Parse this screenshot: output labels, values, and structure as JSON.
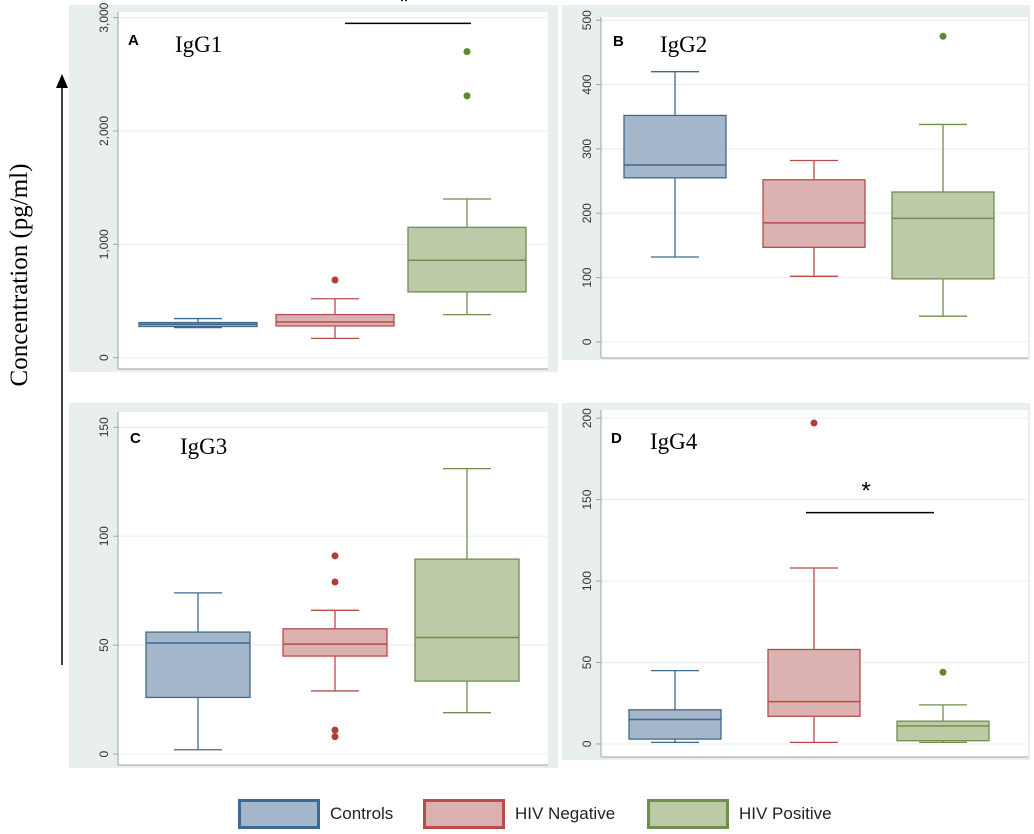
{
  "y_axis_label": "Concentration (pg/ml)",
  "colors": {
    "plot_bg": "#ffffff",
    "outer_bg": "#e9efef",
    "grid": "#eaf0f0",
    "axis": "#9aa3a3",
    "tick_label": "#333333",
    "controls_fill": "#a4b6c9",
    "controls_line": "#3e6a8f",
    "hivneg_fill": "#dcb1b1",
    "hivneg_line": "#b84c4c",
    "hivpos_fill": "#bccaa8",
    "hivpos_line": "#6f8f4e",
    "outlier_controls": "#3e6a8f",
    "outlier_hivneg": "#b23b3b",
    "outlier_hivpos": "#5b8a2e"
  },
  "legend": [
    {
      "name": "Controls",
      "fill": "#a4b6c9",
      "line": "#3e6a8f"
    },
    {
      "name": "HIV Negative",
      "fill": "#dcb1b1",
      "line": "#b84c4c"
    },
    {
      "name": "HIV Positive",
      "fill": "#bccaa8",
      "line": "#6f8f4e"
    }
  ],
  "chart_data": [
    {
      "type": "box",
      "panel": "A",
      "title": "IgG1",
      "ylim": [
        -100,
        3050
      ],
      "ticks": [
        0,
        1000,
        2000,
        3000
      ],
      "tick_labels": [
        "0",
        "1,000",
        "2,000",
        "3,000"
      ],
      "groups": [
        {
          "name": "Controls",
          "min": 265,
          "q1": 275,
          "median": 295,
          "q3": 310,
          "max": 345,
          "outliers": []
        },
        {
          "name": "HIV Negative",
          "min": 170,
          "q1": 280,
          "median": 315,
          "q3": 380,
          "max": 520,
          "outliers": [
            685
          ]
        },
        {
          "name": "HIV Positive",
          "min": 380,
          "q1": 580,
          "median": 860,
          "q3": 1150,
          "max": 1400,
          "outliers": [
            2700,
            2310
          ]
        }
      ],
      "significance": {
        "label": "*",
        "value": 2950
      }
    },
    {
      "type": "box",
      "panel": "B",
      "title": "IgG2",
      "ylim": [
        -25,
        505
      ],
      "ticks": [
        0,
        100,
        200,
        300,
        400,
        500
      ],
      "tick_labels": [
        "0",
        "100",
        "200",
        "300",
        "400",
        "500"
      ],
      "groups": [
        {
          "name": "Controls",
          "min": 132,
          "q1": 255,
          "median": 275,
          "q3": 352,
          "max": 420,
          "outliers": []
        },
        {
          "name": "HIV Negative",
          "min": 102,
          "q1": 147,
          "median": 185,
          "q3": 252,
          "max": 282,
          "outliers": []
        },
        {
          "name": "HIV Positive",
          "min": 40,
          "q1": 98,
          "median": 192,
          "q3": 233,
          "max": 338,
          "outliers": [
            475
          ]
        }
      ],
      "significance": null
    },
    {
      "type": "box",
      "panel": "C",
      "title": "IgG3",
      "ylim": [
        -5,
        157
      ],
      "ticks": [
        0,
        50,
        100,
        150
      ],
      "tick_labels": [
        "0",
        "50",
        "100",
        "150"
      ],
      "groups": [
        {
          "name": "Controls",
          "min": 2,
          "q1": 26,
          "median": 51,
          "q3": 56,
          "max": 74,
          "outliers": []
        },
        {
          "name": "HIV Negative",
          "min": 29,
          "q1": 45,
          "median": 50.5,
          "q3": 57.5,
          "max": 66,
          "outliers": [
            91,
            79,
            11,
            8
          ]
        },
        {
          "name": "HIV Positive",
          "min": 19,
          "q1": 33.5,
          "median": 53.5,
          "q3": 89.5,
          "max": 131,
          "outliers": []
        }
      ],
      "significance": null
    },
    {
      "type": "box",
      "panel": "D",
      "title": "IgG4",
      "ylim": [
        -8,
        205
      ],
      "ticks": [
        0,
        50,
        100,
        150,
        200
      ],
      "tick_labels": [
        "0",
        "50",
        "100",
        "150",
        "200"
      ],
      "groups": [
        {
          "name": "Controls",
          "min": 1,
          "q1": 3,
          "median": 15,
          "q3": 21,
          "max": 45,
          "outliers": []
        },
        {
          "name": "HIV Negative",
          "min": 1,
          "q1": 17,
          "median": 26,
          "q3": 58,
          "max": 108,
          "outliers": [
            197
          ]
        },
        {
          "name": "HIV Positive",
          "min": 1,
          "q1": 2,
          "median": 11,
          "q3": 14,
          "max": 24,
          "outliers": [
            44
          ]
        }
      ],
      "significance": {
        "label": "*",
        "value": 142
      }
    }
  ]
}
